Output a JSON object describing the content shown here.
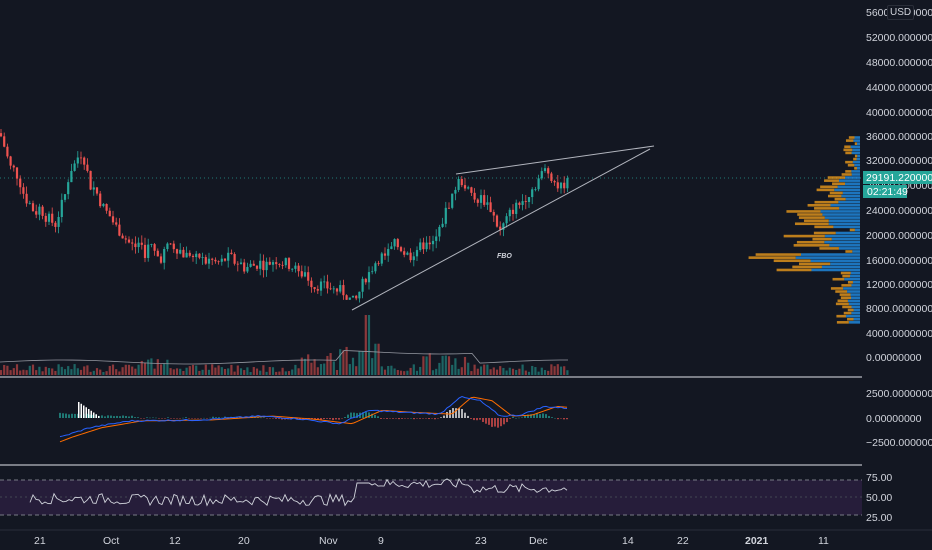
{
  "currency_label": "USD",
  "price_badge": {
    "value": "29191.22000000",
    "countdown": "02:21:49"
  },
  "annotation": "FBO",
  "price_axis_labels": [
    "56000.00000000",
    "52000.00000000",
    "48000.00000000",
    "44000.00000000",
    "40000.00000000",
    "36000.00000000",
    "32000.00000000",
    "28000.00000000",
    "24000.00000000",
    "20000.00000000",
    "16000.00000000",
    "12000.00000000",
    "8000.00000000",
    "4000.00000000",
    "0.00000000"
  ],
  "macd_axis_labels": [
    "2500.00000000",
    "0.00000000",
    "−2500.00000000"
  ],
  "rsi_axis_labels": [
    "75.00",
    "50.00",
    "25.00"
  ],
  "date_labels": [
    "21",
    "Oct",
    "12",
    "20",
    "Nov",
    "9",
    "23",
    "Dec",
    "14",
    "22",
    "2021",
    "11"
  ],
  "colors": {
    "background": "#131722",
    "up": "#26a69a",
    "down": "#ef5350",
    "trendline": "#b2b5be",
    "macd": "#2962ff",
    "signal": "#ff6d00",
    "rsi": "#d1d4dc",
    "rsi_band": "#2a1e3e",
    "vp_up": "#2196f3",
    "vp_down": "#f7a21b",
    "price_badge": "#26a69a"
  },
  "chart_data": {
    "type": "candlestick",
    "price_ticks": [
      56000,
      52000,
      48000,
      44000,
      40000,
      36000,
      32000,
      28000,
      24000,
      20000,
      16000,
      12000,
      8000,
      4000,
      0
    ],
    "last_price": 29191.22,
    "close_path": [
      [
        0,
        36500
      ],
      [
        5,
        34000
      ],
      [
        10,
        31000
      ],
      [
        15,
        30500
      ],
      [
        20,
        28500
      ],
      [
        25,
        26000
      ],
      [
        30,
        25000
      ],
      [
        35,
        23500
      ],
      [
        40,
        24500
      ],
      [
        45,
        23000
      ],
      [
        50,
        22500
      ],
      [
        55,
        21500
      ],
      [
        60,
        24000
      ],
      [
        65,
        26500
      ],
      [
        70,
        30500
      ],
      [
        75,
        31500
      ],
      [
        80,
        33500
      ],
      [
        85,
        32000
      ],
      [
        90,
        28000
      ],
      [
        95,
        27500
      ],
      [
        100,
        25500
      ],
      [
        105,
        24000
      ],
      [
        110,
        23000
      ],
      [
        115,
        21500
      ],
      [
        120,
        20500
      ],
      [
        125,
        19500
      ],
      [
        130,
        18500
      ],
      [
        135,
        18000
      ],
      [
        140,
        19000
      ],
      [
        145,
        17000
      ],
      [
        150,
        18500
      ],
      [
        155,
        17000
      ],
      [
        160,
        16000
      ],
      [
        165,
        17500
      ],
      [
        170,
        18500
      ],
      [
        175,
        18000
      ],
      [
        180,
        17500
      ],
      [
        185,
        16500
      ],
      [
        190,
        17000
      ],
      [
        195,
        16000
      ],
      [
        200,
        16500
      ],
      [
        205,
        15500
      ],
      [
        210,
        16000
      ],
      [
        215,
        15500
      ],
      [
        220,
        15500
      ],
      [
        225,
        16000
      ],
      [
        230,
        16500
      ],
      [
        235,
        15500
      ],
      [
        240,
        15500
      ],
      [
        245,
        14500
      ],
      [
        250,
        15000
      ],
      [
        255,
        15000
      ],
      [
        260,
        15500
      ],
      [
        265,
        15000
      ],
      [
        270,
        15500
      ],
      [
        275,
        16000
      ],
      [
        280,
        15500
      ],
      [
        285,
        15500
      ],
      [
        290,
        15000
      ],
      [
        295,
        14500
      ],
      [
        300,
        13500
      ],
      [
        305,
        14000
      ],
      [
        310,
        12500
      ],
      [
        315,
        11500
      ],
      [
        320,
        12000
      ],
      [
        325,
        11500
      ],
      [
        330,
        11500
      ],
      [
        335,
        11000
      ],
      [
        340,
        11000
      ],
      [
        345,
        10500
      ],
      [
        350,
        9500
      ],
      [
        355,
        9000
      ],
      [
        360,
        11000
      ],
      [
        365,
        13000
      ],
      [
        370,
        14000
      ],
      [
        375,
        15500
      ],
      [
        380,
        16500
      ],
      [
        385,
        16500
      ],
      [
        390,
        17500
      ],
      [
        395,
        18500
      ],
      [
        400,
        18000
      ],
      [
        405,
        17000
      ],
      [
        410,
        16500
      ],
      [
        415,
        17500
      ],
      [
        420,
        18000
      ],
      [
        425,
        18500
      ],
      [
        430,
        18000
      ],
      [
        435,
        19000
      ],
      [
        440,
        21000
      ],
      [
        445,
        23500
      ],
      [
        450,
        25500
      ],
      [
        455,
        27500
      ],
      [
        460,
        29000
      ],
      [
        465,
        28000
      ],
      [
        470,
        26500
      ],
      [
        475,
        25500
      ],
      [
        480,
        26000
      ],
      [
        485,
        25500
      ],
      [
        490,
        24500
      ],
      [
        495,
        22500
      ],
      [
        500,
        20500
      ],
      [
        505,
        22000
      ],
      [
        510,
        23500
      ],
      [
        515,
        24500
      ],
      [
        520,
        25000
      ],
      [
        525,
        26000
      ],
      [
        530,
        27000
      ],
      [
        535,
        28000
      ],
      [
        540,
        29500
      ],
      [
        545,
        30500
      ],
      [
        550,
        30000
      ],
      [
        555,
        28500
      ],
      [
        560,
        27500
      ],
      [
        565,
        28500
      ],
      [
        568,
        29191
      ]
    ],
    "macd_levels": [
      2500,
      0,
      -2500
    ],
    "rsi_levels": [
      75,
      50,
      25
    ],
    "dates": [
      "21",
      "Oct",
      "12",
      "20",
      "Nov",
      "9",
      "23",
      "Dec",
      "14",
      "22",
      "2021",
      "11"
    ]
  }
}
